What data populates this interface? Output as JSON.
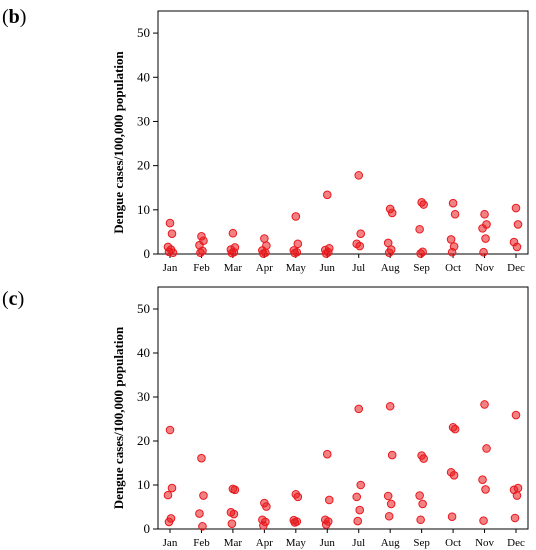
{
  "chart_data": [
    {
      "type": "scatter",
      "panel": {
        "open": "(",
        "letter": "b",
        "close": ")"
      },
      "ylabel": "Dengue cases/100,000 population",
      "xlabel": "",
      "categories": [
        "Jan",
        "Feb",
        "Mar",
        "Apr",
        "May",
        "Jun",
        "Jul",
        "Aug",
        "Sep",
        "Oct",
        "Nov",
        "Dec"
      ],
      "ylim": [
        0,
        55
      ],
      "yticks": [
        0,
        10,
        20,
        30,
        40,
        50
      ],
      "points": {
        "Jan": [
          7.0,
          4.6,
          1.6,
          1.0,
          0.5,
          0.3
        ],
        "Feb": [
          4.0,
          3.0,
          2.0,
          0.7,
          0.3
        ],
        "Mar": [
          4.7,
          1.5,
          1.0,
          0.4,
          0.2
        ],
        "Apr": [
          3.5,
          1.9,
          0.8,
          0.3,
          0.1
        ],
        "May": [
          8.5,
          2.3,
          0.8,
          0.4,
          0.2
        ],
        "Jun": [
          13.4,
          1.3,
          0.9,
          0.4,
          0.1
        ],
        "Jul": [
          17.8,
          4.6,
          2.3,
          1.8
        ],
        "Aug": [
          10.2,
          9.3,
          2.5,
          1.0,
          0.3
        ],
        "Sep": [
          11.7,
          11.2,
          5.6,
          0.5,
          0.1
        ],
        "Oct": [
          11.5,
          9.0,
          3.3,
          1.7,
          0.4
        ],
        "Nov": [
          9.0,
          6.7,
          5.8,
          3.5,
          0.4
        ],
        "Dec": [
          10.4,
          6.7,
          2.7,
          1.6
        ]
      },
      "marker_color": "#e8191e",
      "marker_fill": "rgba(232,25,30,0.55)",
      "grid": false
    },
    {
      "type": "scatter",
      "panel": {
        "open": "(",
        "letter": "c",
        "close": ")"
      },
      "ylabel": "Dengue cases/100,000 population",
      "xlabel": "",
      "categories": [
        "Jan",
        "Feb",
        "Mar",
        "Apr",
        "May",
        "Jun",
        "Jul",
        "Aug",
        "Sep",
        "Oct",
        "Nov",
        "Dec"
      ],
      "ylim": [
        0,
        55
      ],
      "yticks": [
        0,
        10,
        20,
        30,
        40,
        50
      ],
      "points": {
        "Jan": [
          22.5,
          9.3,
          7.7,
          2.4,
          1.6
        ],
        "Feb": [
          16.1,
          7.6,
          3.5,
          0.6
        ],
        "Mar": [
          9.1,
          8.9,
          3.8,
          3.4,
          1.2
        ],
        "Apr": [
          5.9,
          5.1,
          2.1,
          1.6,
          0.8
        ],
        "May": [
          7.9,
          7.3,
          2.0,
          1.7,
          1.5
        ],
        "Jun": [
          17.0,
          6.6,
          2.1,
          1.7,
          1.0
        ],
        "Jul": [
          27.3,
          10.0,
          7.3,
          4.3,
          1.8
        ],
        "Aug": [
          27.9,
          16.8,
          7.5,
          5.7,
          2.9
        ],
        "Sep": [
          16.7,
          16.0,
          7.6,
          5.7,
          2.1
        ],
        "Oct": [
          23.1,
          22.7,
          12.9,
          12.2,
          2.8
        ],
        "Nov": [
          28.3,
          18.3,
          11.2,
          9.0,
          1.9
        ],
        "Dec": [
          25.9,
          9.3,
          8.9,
          7.6,
          2.5
        ]
      },
      "marker_color": "#e8191e",
      "marker_fill": "rgba(232,25,30,0.55)",
      "grid": false
    }
  ]
}
